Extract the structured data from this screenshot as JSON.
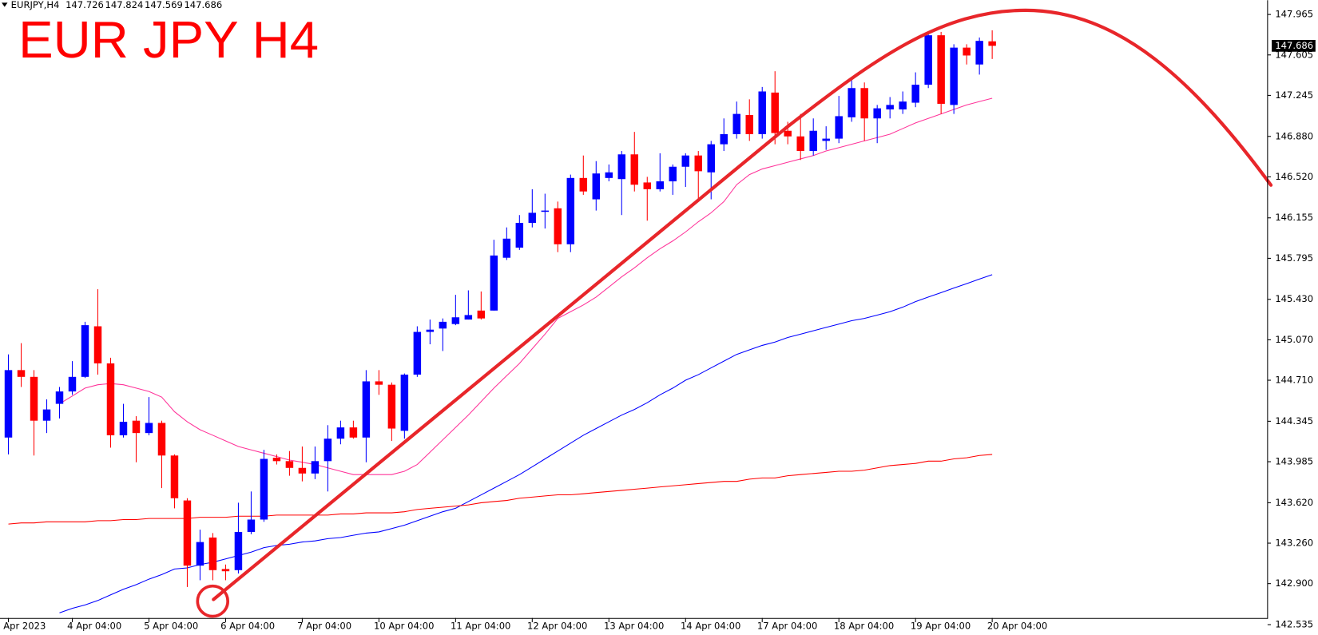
{
  "chart_data": {
    "type": "candlestick",
    "title": "EUR JPY H4",
    "symbol": "EURJPY,H4",
    "up_color": "#0000ff",
    "down_color": "#ff0000",
    "categories": [
      "Apr 2023",
      null,
      null,
      null,
      null,
      "4 Apr 04:00",
      null,
      null,
      null,
      null,
      null,
      "5 Apr 04:00",
      null,
      null,
      null,
      null,
      null,
      "6 Apr 04:00",
      null,
      null,
      null,
      null,
      null,
      "7 Apr 04:00",
      null,
      null,
      null,
      null,
      null,
      "10 Apr 04:00",
      null,
      null,
      null,
      null,
      null,
      "11 Apr 04:00",
      null,
      null,
      null,
      null,
      null,
      "12 Apr 04:00",
      null,
      null,
      null,
      null,
      null,
      "13 Apr 04:00",
      null,
      null,
      null,
      null,
      null,
      "14 Apr 04:00",
      null,
      null,
      null,
      null,
      null,
      "17 Apr 04:00",
      null,
      null,
      null,
      null,
      null,
      "18 Apr 04:00",
      null,
      null,
      null,
      null,
      null,
      "19 Apr 04:00",
      null,
      null,
      null,
      null,
      null,
      "20 Apr 04:00"
    ],
    "open": [
      144.2,
      144.8,
      144.74,
      144.35,
      144.5,
      144.61,
      144.74,
      145.19,
      144.86,
      144.22,
      144.35,
      144.24,
      144.33,
      144.04,
      143.64,
      143.06,
      143.31,
      143.03,
      143.02,
      143.36,
      143.47,
      144.02,
      143.99,
      143.93,
      143.88,
      143.99,
      144.19,
      144.29,
      144.2,
      144.7,
      144.67,
      144.26,
      144.76,
      145.14,
      145.17,
      145.21,
      145.25,
      145.33,
      145.33,
      145.8,
      145.89,
      146.11,
      146.21,
      146.24,
      145.92,
      146.51,
      146.32,
      146.51,
      146.5,
      146.72,
      146.47,
      146.41,
      146.48,
      146.61,
      146.71,
      146.56,
      146.81,
      146.9,
      147.07,
      146.9,
      147.27,
      146.93,
      146.88,
      146.75,
      146.84,
      146.86,
      147.05,
      147.31,
      147.04,
      147.12,
      147.12,
      147.18,
      147.34,
      147.78,
      147.16,
      147.67,
      147.52,
      147.726
    ],
    "high": [
      144.94,
      145.04,
      144.8,
      144.54,
      144.65,
      144.88,
      145.23,
      145.52,
      144.91,
      144.5,
      144.39,
      144.56,
      144.35,
      144.05,
      143.66,
      143.38,
      143.35,
      143.07,
      143.62,
      143.72,
      144.09,
      144.05,
      144.08,
      144.12,
      144.12,
      144.31,
      144.35,
      144.35,
      144.8,
      144.8,
      144.69,
      144.77,
      145.19,
      145.25,
      145.26,
      145.47,
      145.51,
      145.5,
      145.96,
      146.07,
      146.18,
      146.41,
      146.37,
      146.3,
      146.54,
      146.71,
      146.66,
      146.63,
      146.75,
      146.92,
      146.52,
      146.73,
      146.63,
      146.73,
      146.75,
      146.84,
      147.04,
      147.19,
      147.21,
      147.32,
      147.46,
      147.01,
      147.08,
      147.04,
      146.97,
      147.24,
      147.38,
      147.36,
      147.16,
      147.23,
      147.28,
      147.45,
      147.81,
      147.81,
      147.7,
      147.7,
      147.76,
      147.824
    ],
    "low": [
      144.05,
      144.65,
      144.04,
      144.24,
      144.37,
      144.58,
      144.73,
      144.76,
      144.11,
      144.2,
      143.98,
      144.22,
      143.75,
      143.57,
      142.87,
      142.93,
      142.93,
      142.93,
      142.99,
      143.34,
      143.45,
      143.96,
      143.86,
      143.81,
      143.83,
      143.72,
      144.14,
      144.19,
      143.98,
      144.58,
      144.17,
      144.19,
      144.74,
      145.03,
      144.97,
      145.2,
      145.25,
      145.25,
      145.33,
      145.78,
      145.87,
      146.07,
      146.06,
      145.85,
      145.85,
      146.36,
      146.22,
      146.48,
      146.18,
      146.39,
      146.13,
      146.39,
      146.36,
      146.43,
      146.3,
      146.32,
      146.75,
      146.86,
      146.84,
      146.86,
      146.81,
      146.81,
      146.67,
      146.71,
      146.76,
      146.82,
      147.01,
      146.84,
      146.82,
      147.04,
      147.08,
      147.14,
      147.31,
      147.08,
      147.08,
      147.52,
      147.43,
      147.569
    ],
    "close": [
      144.8,
      144.74,
      144.35,
      144.45,
      144.61,
      144.74,
      145.2,
      144.86,
      144.22,
      144.34,
      144.24,
      144.33,
      144.04,
      143.66,
      143.06,
      143.27,
      143.02,
      143.01,
      143.36,
      143.47,
      144.01,
      143.99,
      143.93,
      143.88,
      143.99,
      144.19,
      144.29,
      144.2,
      144.7,
      144.67,
      144.28,
      144.76,
      145.14,
      145.16,
      145.23,
      145.27,
      145.29,
      145.26,
      145.82,
      145.97,
      146.11,
      146.2,
      146.22,
      145.92,
      146.51,
      146.39,
      146.55,
      146.56,
      146.72,
      146.45,
      146.41,
      146.48,
      146.61,
      146.71,
      146.57,
      146.81,
      146.9,
      147.08,
      146.9,
      147.28,
      146.91,
      146.88,
      146.75,
      146.93,
      146.86,
      147.06,
      147.31,
      147.04,
      147.13,
      147.16,
      147.19,
      147.34,
      147.78,
      147.17,
      147.67,
      147.6,
      147.73,
      147.686
    ],
    "series": [
      {
        "color": "#ff3399",
        "values": [
          null,
          null,
          null,
          null,
          144.5,
          144.57,
          144.64,
          144.67,
          144.68,
          144.67,
          144.64,
          144.61,
          144.56,
          144.43,
          144.34,
          144.27,
          144.22,
          144.17,
          144.12,
          144.09,
          144.06,
          144.03,
          144.0,
          143.98,
          143.96,
          143.93,
          143.9,
          143.87,
          143.87,
          143.87,
          143.87,
          143.9,
          143.96,
          144.07,
          144.18,
          144.29,
          144.4,
          144.52,
          144.64,
          144.75,
          144.86,
          144.99,
          145.12,
          145.26,
          145.32,
          145.38,
          145.45,
          145.54,
          145.63,
          145.71,
          145.8,
          145.88,
          145.95,
          146.03,
          146.12,
          146.2,
          146.3,
          146.45,
          146.54,
          146.59,
          146.62,
          146.65,
          146.68,
          146.71,
          146.75,
          146.78,
          146.81,
          146.84,
          146.87,
          146.9,
          146.95,
          147.0,
          147.04,
          147.08,
          147.12,
          147.16,
          147.19,
          147.22
        ]
      },
      {
        "color": "#0000ff",
        "values": [
          null,
          null,
          null,
          null,
          142.64,
          142.68,
          142.71,
          142.75,
          142.8,
          142.85,
          142.89,
          142.94,
          142.98,
          143.03,
          143.04,
          143.07,
          143.09,
          143.12,
          143.15,
          143.18,
          143.22,
          143.24,
          143.25,
          143.27,
          143.28,
          143.3,
          143.31,
          143.33,
          143.35,
          143.36,
          143.39,
          143.42,
          143.46,
          143.5,
          143.54,
          143.57,
          143.63,
          143.69,
          143.75,
          143.81,
          143.87,
          143.94,
          144.01,
          144.08,
          144.15,
          144.22,
          144.28,
          144.34,
          144.4,
          144.45,
          144.51,
          144.58,
          144.64,
          144.71,
          144.76,
          144.82,
          144.88,
          144.94,
          144.98,
          145.02,
          145.05,
          145.09,
          145.12,
          145.15,
          145.18,
          145.21,
          145.24,
          145.26,
          145.29,
          145.32,
          145.36,
          145.41,
          145.45,
          145.49,
          145.53,
          145.57,
          145.61,
          145.65
        ]
      },
      {
        "color": "#ff0000",
        "values": [
          143.43,
          143.44,
          143.44,
          143.45,
          143.45,
          143.45,
          143.45,
          143.46,
          143.46,
          143.47,
          143.47,
          143.48,
          143.48,
          143.48,
          143.48,
          143.49,
          143.49,
          143.49,
          143.5,
          143.5,
          143.5,
          143.51,
          143.51,
          143.51,
          143.51,
          143.51,
          143.52,
          143.52,
          143.53,
          143.53,
          143.53,
          143.54,
          143.56,
          143.57,
          143.58,
          143.59,
          143.6,
          143.62,
          143.63,
          143.64,
          143.66,
          143.67,
          143.68,
          143.69,
          143.69,
          143.7,
          143.71,
          143.72,
          143.73,
          143.74,
          143.75,
          143.76,
          143.77,
          143.78,
          143.79,
          143.8,
          143.81,
          143.81,
          143.83,
          143.84,
          143.84,
          143.86,
          143.87,
          143.88,
          143.89,
          143.9,
          143.9,
          143.91,
          143.93,
          143.95,
          143.96,
          143.97,
          143.99,
          143.99,
          144.01,
          144.02,
          144.04,
          144.05
        ]
      }
    ],
    "ylim": [
      142.467,
      148.092
    ],
    "yticks": [
      147.965,
      147.605,
      147.245,
      {
        "value": 146.88,
        "label": "146.880"
      },
      {
        "value": 146.52,
        "label": "146.520"
      },
      146.155,
      145.795,
      {
        "value": 145.43,
        "label": "145.430"
      },
      {
        "value": 145.07,
        "label": "145.070"
      },
      {
        "value": 144.71,
        "label": "144.710"
      },
      144.345,
      143.985,
      {
        "value": 143.62,
        "label": "143.620"
      },
      {
        "value": 143.26,
        "label": "143.260"
      },
      {
        "value": 142.9,
        "label": "142.900"
      },
      142.535
    ]
  }
}
